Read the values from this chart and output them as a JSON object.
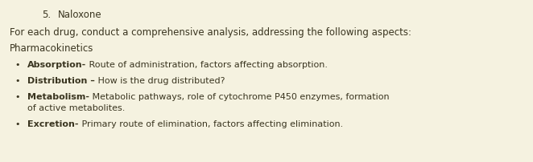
{
  "background_color": "#f5f2e0",
  "heading_number": "5.",
  "heading_text": "Naloxone",
  "intro_text": "For each drug, conduct a comprehensive analysis, addressing the following aspects:",
  "section_title": "Pharmacokinetics",
  "bullets": [
    {
      "bold": "Absorption-",
      "normal": " Route of administration, factors affecting absorption."
    },
    {
      "bold": "Distribution –",
      "normal": " How is the drug distributed?"
    },
    {
      "bold": "Metabolism-",
      "normal": " Metabolic pathways, role of cytochrome P450 enzymes, formation\nof active metabolites."
    },
    {
      "bold": "Excretion-",
      "normal": " Primary route of elimination, factors affecting elimination."
    }
  ],
  "text_color": "#3a3520",
  "heading_fontsize": 8.5,
  "intro_fontsize": 8.5,
  "section_fontsize": 8.5,
  "bullet_fontsize": 8.0,
  "bullet_char": "•",
  "fig_width": 6.62,
  "fig_height": 2.03,
  "dpi": 100
}
